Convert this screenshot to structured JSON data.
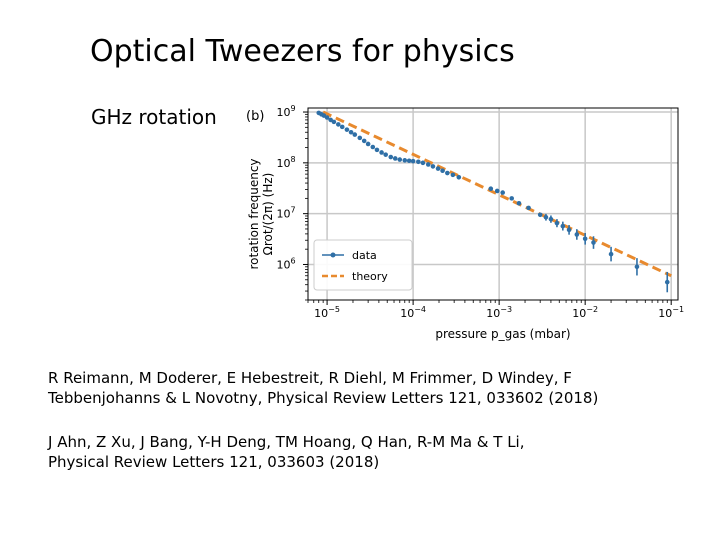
{
  "slide": {
    "title": "Optical Tweezers for physics",
    "bullet": "GHz rotation"
  },
  "references": [
    {
      "line1": "R Reimann, M Doderer, E Hebestreit, R Diehl, M Frimmer, D Windey, F",
      "line2": "Tebbenjohanns & L Novotny, Physical Review Letters 121, 033602 (2018)"
    },
    {
      "line1": "J Ahn, Z Xu, J Bang, Y-H Deng, TM Hoang, Q Han, R-M Ma & T Li,",
      "line2": "Physical Review Letters 121, 033603 (2018)"
    }
  ],
  "chart_data": {
    "type": "scatter",
    "panel_label": "(b)",
    "xlabel": "pressure p_gas (mbar)",
    "ylabel_line1": "rotation frequency",
    "ylabel_line2": "Ωrot/(2π) (Hz)",
    "xscale": "log",
    "yscale": "log",
    "xlim": [
      6e-06,
      0.12
    ],
    "ylim": [
      200000.0,
      1200000000.0
    ],
    "xticks": [
      {
        "value": 1e-05,
        "base": "10",
        "exp": "−5"
      },
      {
        "value": 0.0001,
        "base": "10",
        "exp": "−4"
      },
      {
        "value": 0.001,
        "base": "10",
        "exp": "−3"
      },
      {
        "value": 0.01,
        "base": "10",
        "exp": "−2"
      },
      {
        "value": 0.1,
        "base": "10",
        "exp": "−1"
      }
    ],
    "yticks": [
      {
        "value": 1000000.0,
        "base": "10",
        "exp": "6"
      },
      {
        "value": 10000000.0,
        "base": "10",
        "exp": "7"
      },
      {
        "value": 100000000.0,
        "base": "10",
        "exp": "8"
      },
      {
        "value": 1000000000.0,
        "base": "10",
        "exp": "9"
      }
    ],
    "grid": true,
    "legend_placement": "bottom-left",
    "colors": {
      "data": "#2f6fa6",
      "theory": "#e88a2e",
      "grid": "#c8c8c8"
    },
    "series": [
      {
        "name": "data",
        "style": "markers",
        "points": [
          [
            8e-06,
            960000000.0
          ],
          [
            8.6e-06,
            900000000.0
          ],
          [
            9.2e-06,
            850000000.0
          ],
          [
            1e-05,
            780000000.0
          ],
          [
            1.1e-05,
            700000000.0
          ],
          [
            1.2e-05,
            640000000.0
          ],
          [
            1.35e-05,
            570000000.0
          ],
          [
            1.5e-05,
            510000000.0
          ],
          [
            1.7e-05,
            450000000.0
          ],
          [
            1.9e-05,
            400000000.0
          ],
          [
            2.1e-05,
            360000000.0
          ],
          [
            2.4e-05,
            310000000.0
          ],
          [
            2.7e-05,
            270000000.0
          ],
          [
            3e-05,
            235000000.0
          ],
          [
            3.4e-05,
            205000000.0
          ],
          [
            3.8e-05,
            180000000.0
          ],
          [
            4.3e-05,
            160000000.0
          ],
          [
            4.8e-05,
            145000000.0
          ],
          [
            5.5e-05,
            130000000.0
          ],
          [
            6.2e-05,
            122000000.0
          ],
          [
            7e-05,
            116000000.0
          ],
          [
            8e-05,
            112000000.0
          ],
          [
            9e-05,
            110000000.0
          ],
          [
            0.0001,
            108000000.0
          ],
          [
            0.000115,
            105000000.0
          ],
          [
            0.00013,
            100000000.0
          ],
          [
            0.00015,
            93000000.0
          ],
          [
            0.00017,
            85000000.0
          ],
          [
            0.000195,
            77000000.0
          ],
          [
            0.00022,
            70000000.0
          ],
          [
            0.00025,
            63000000.0
          ],
          [
            0.00029,
            58000000.0
          ],
          [
            0.00034,
            52000000.0
          ],
          [
            0.0008,
            31000000.0
          ],
          [
            0.00095,
            28000000.0
          ],
          [
            0.0011,
            26000000.0
          ],
          [
            0.0014,
            20000000.0
          ],
          [
            0.0017,
            16000000.0
          ],
          [
            0.0022,
            13000000.0
          ],
          [
            0.003,
            9500000.0
          ],
          [
            0.0035,
            8500000.0
          ],
          [
            0.004,
            7800000.0
          ],
          [
            0.0047,
            6500000.0
          ],
          [
            0.0055,
            5700000.0
          ],
          [
            0.0065,
            4800000.0
          ],
          [
            0.008,
            3900000.0
          ],
          [
            0.01,
            3200000.0
          ],
          [
            0.0125,
            2700000.0
          ],
          [
            0.02,
            1600000.0
          ],
          [
            0.04,
            900000.0
          ],
          [
            0.09,
            450000.0
          ]
        ]
      },
      {
        "name": "theory",
        "style": "dashed-line",
        "points": [
          [
            9e-06,
            1000000000.0
          ],
          [
            0.1,
            600000.0
          ]
        ]
      }
    ]
  }
}
